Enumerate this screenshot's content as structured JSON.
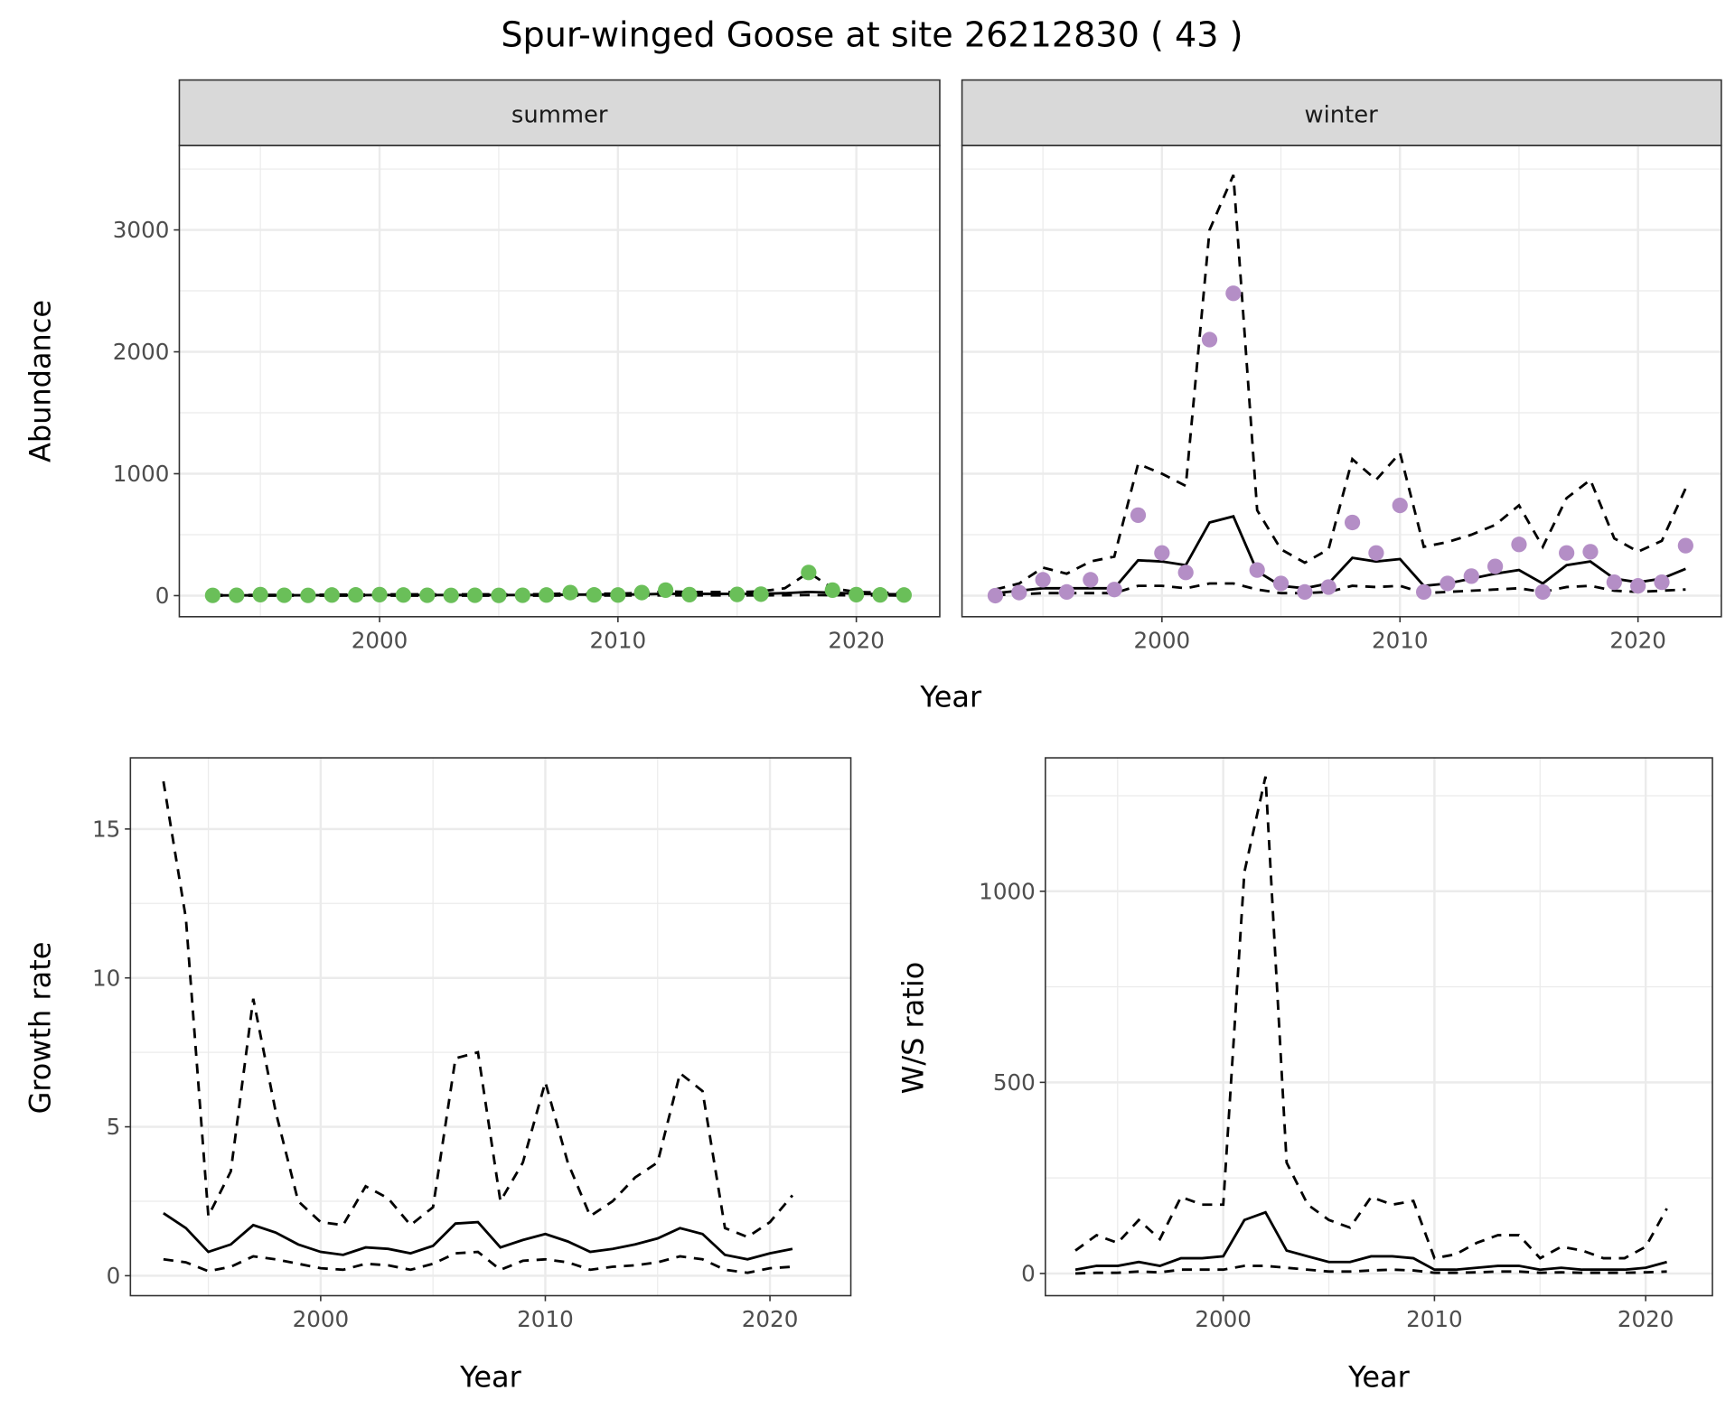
{
  "title": "Spur-winged Goose at site 26212830 ( 43 )",
  "colors": {
    "summer": "#6abf59",
    "winter": "#b48ec6",
    "line": "#000000",
    "strip": "#d9d9d9",
    "grid": "#ebebeb"
  },
  "chart_data": [
    {
      "type": "line+scatter",
      "facet": "summer",
      "xlabel": "Year",
      "ylabel": "Abundance",
      "xlim": [
        1991.6,
        2023.5
      ],
      "ylim": [
        -173,
        3692
      ],
      "xticks": [
        2000,
        2010,
        2020
      ],
      "yticks": [
        0,
        1000,
        2000,
        3000
      ],
      "points": {
        "x": [
          1993,
          1994,
          1995,
          1996,
          1997,
          1998,
          1999,
          2000,
          2001,
          2002,
          2003,
          2004,
          2005,
          2006,
          2007,
          2008,
          2009,
          2010,
          2011,
          2012,
          2013,
          2015,
          2016,
          2018,
          2019,
          2020,
          2021,
          2022
        ],
        "y": [
          2,
          3,
          8,
          3,
          2,
          5,
          6,
          8,
          5,
          3,
          2,
          3,
          2,
          3,
          5,
          25,
          6,
          5,
          25,
          45,
          8,
          10,
          12,
          190,
          45,
          8,
          6,
          5
        ]
      },
      "x": [
        1993,
        1994,
        1995,
        1996,
        1997,
        1998,
        1999,
        2000,
        2001,
        2002,
        2003,
        2004,
        2005,
        2006,
        2007,
        2008,
        2009,
        2010,
        2011,
        2012,
        2013,
        2014,
        2015,
        2016,
        2017,
        2018,
        2019,
        2020,
        2021,
        2022
      ],
      "mean": [
        2,
        2,
        3,
        3,
        3,
        4,
        4,
        5,
        5,
        5,
        5,
        5,
        5,
        5,
        6,
        8,
        8,
        8,
        10,
        15,
        15,
        14,
        14,
        15,
        20,
        30,
        25,
        15,
        12,
        10
      ],
      "upper": [
        5,
        5,
        6,
        6,
        6,
        8,
        8,
        10,
        10,
        10,
        10,
        10,
        10,
        10,
        12,
        18,
        16,
        16,
        22,
        35,
        30,
        30,
        28,
        35,
        60,
        190,
        60,
        30,
        25,
        20
      ],
      "lower": [
        0,
        0,
        0,
        0,
        0,
        0,
        0,
        0,
        0,
        0,
        0,
        0,
        0,
        0,
        0,
        1,
        1,
        1,
        1,
        2,
        2,
        2,
        2,
        2,
        3,
        5,
        4,
        2,
        2,
        1
      ]
    },
    {
      "type": "line+scatter",
      "facet": "winter",
      "xlabel": "Year",
      "ylabel": "Abundance",
      "xlim": [
        1991.6,
        2023.5
      ],
      "ylim": [
        -173,
        3692
      ],
      "xticks": [
        2000,
        2010,
        2020
      ],
      "yticks": [
        0,
        1000,
        2000,
        3000
      ],
      "points": {
        "x": [
          1993,
          1994,
          1995,
          1996,
          1997,
          1998,
          1999,
          2000,
          2001,
          2002,
          2003,
          2004,
          2005,
          2006,
          2007,
          2008,
          2009,
          2010,
          2011,
          2012,
          2013,
          2014,
          2015,
          2016,
          2017,
          2018,
          2019,
          2020,
          2021,
          2022
        ],
        "y": [
          0,
          25,
          130,
          30,
          130,
          50,
          660,
          350,
          190,
          2100,
          2480,
          210,
          100,
          30,
          70,
          600,
          350,
          740,
          30,
          100,
          160,
          240,
          420,
          30,
          350,
          360,
          110,
          80,
          110,
          410
        ]
      },
      "x": [
        1993,
        1994,
        1995,
        1996,
        1997,
        1998,
        1999,
        2000,
        2001,
        2002,
        2003,
        2004,
        2005,
        2006,
        2007,
        2008,
        2009,
        2010,
        2011,
        2012,
        2013,
        2014,
        2015,
        2016,
        2017,
        2018,
        2019,
        2020,
        2021,
        2022
      ],
      "mean": [
        20,
        40,
        60,
        60,
        60,
        60,
        290,
        280,
        250,
        600,
        650,
        200,
        80,
        60,
        100,
        310,
        280,
        300,
        80,
        100,
        140,
        180,
        210,
        100,
        250,
        280,
        140,
        110,
        140,
        220
      ],
      "upper": [
        50,
        100,
        230,
        180,
        280,
        320,
        1080,
        1000,
        900,
        3000,
        3450,
        700,
        380,
        270,
        380,
        1120,
        950,
        1170,
        400,
        440,
        500,
        580,
        740,
        400,
        800,
        950,
        470,
        360,
        450,
        880
      ],
      "lower": [
        5,
        10,
        20,
        20,
        20,
        20,
        80,
        80,
        60,
        100,
        100,
        50,
        20,
        20,
        30,
        80,
        70,
        80,
        20,
        30,
        40,
        50,
        60,
        30,
        70,
        80,
        40,
        30,
        40,
        50
      ]
    },
    {
      "type": "line",
      "xlabel": "Year",
      "ylabel": "Growth rate",
      "xlim": [
        1991.53,
        2023.6
      ],
      "ylim": [
        -0.67,
        17.39
      ],
      "xticks": [
        2000,
        2010,
        2020
      ],
      "yticks": [
        0,
        5,
        10,
        15
      ],
      "x": [
        1993,
        1994,
        1995,
        1996,
        1997,
        1998,
        1999,
        2000,
        2001,
        2002,
        2003,
        2004,
        2005,
        2006,
        2007,
        2008,
        2009,
        2010,
        2011,
        2012,
        2013,
        2014,
        2015,
        2016,
        2017,
        2018,
        2019,
        2020,
        2021
      ],
      "mean": [
        2.1,
        1.6,
        0.8,
        1.05,
        1.7,
        1.45,
        1.05,
        0.8,
        0.7,
        0.95,
        0.9,
        0.75,
        1.0,
        1.75,
        1.8,
        0.95,
        1.2,
        1.4,
        1.15,
        0.8,
        0.9,
        1.05,
        1.25,
        1.6,
        1.4,
        0.7,
        0.55,
        0.75,
        0.9
      ],
      "upper": [
        16.6,
        12,
        2.0,
        3.5,
        9.3,
        5.5,
        2.5,
        1.8,
        1.7,
        3.0,
        2.6,
        1.7,
        2.3,
        7.3,
        7.5,
        2.5,
        3.8,
        6.5,
        3.8,
        2.0,
        2.5,
        3.3,
        3.8,
        6.8,
        6.2,
        1.6,
        1.3,
        1.8,
        2.7
      ],
      "lower": [
        0.55,
        0.45,
        0.15,
        0.3,
        0.65,
        0.55,
        0.4,
        0.25,
        0.2,
        0.4,
        0.35,
        0.2,
        0.4,
        0.75,
        0.8,
        0.2,
        0.5,
        0.55,
        0.45,
        0.2,
        0.3,
        0.35,
        0.45,
        0.65,
        0.55,
        0.2,
        0.1,
        0.25,
        0.3
      ]
    },
    {
      "type": "line",
      "xlabel": "Year",
      "ylabel": "W/S ratio",
      "xlim": [
        1991.58,
        2023.16
      ],
      "ylim": [
        -58,
        1349
      ],
      "xticks": [
        2000,
        2010,
        2020
      ],
      "yticks": [
        0,
        500,
        1000
      ],
      "x": [
        1993,
        1994,
        1995,
        1996,
        1997,
        1998,
        1999,
        2000,
        2001,
        2002,
        2003,
        2004,
        2005,
        2006,
        2007,
        2008,
        2009,
        2010,
        2011,
        2012,
        2013,
        2014,
        2015,
        2016,
        2017,
        2018,
        2019,
        2020,
        2021
      ],
      "mean": [
        10,
        20,
        20,
        30,
        20,
        40,
        40,
        45,
        140,
        160,
        60,
        45,
        30,
        30,
        45,
        45,
        40,
        10,
        10,
        15,
        20,
        20,
        10,
        15,
        10,
        10,
        10,
        15,
        30
      ],
      "upper": [
        60,
        100,
        80,
        140,
        90,
        200,
        180,
        180,
        1050,
        1300,
        290,
        180,
        140,
        120,
        200,
        180,
        190,
        40,
        50,
        80,
        100,
        100,
        40,
        70,
        60,
        40,
        40,
        70,
        170
      ],
      "lower": [
        0,
        2,
        2,
        5,
        3,
        10,
        10,
        10,
        20,
        20,
        15,
        10,
        5,
        5,
        8,
        10,
        8,
        2,
        2,
        3,
        5,
        5,
        2,
        3,
        2,
        2,
        2,
        3,
        5
      ]
    }
  ]
}
